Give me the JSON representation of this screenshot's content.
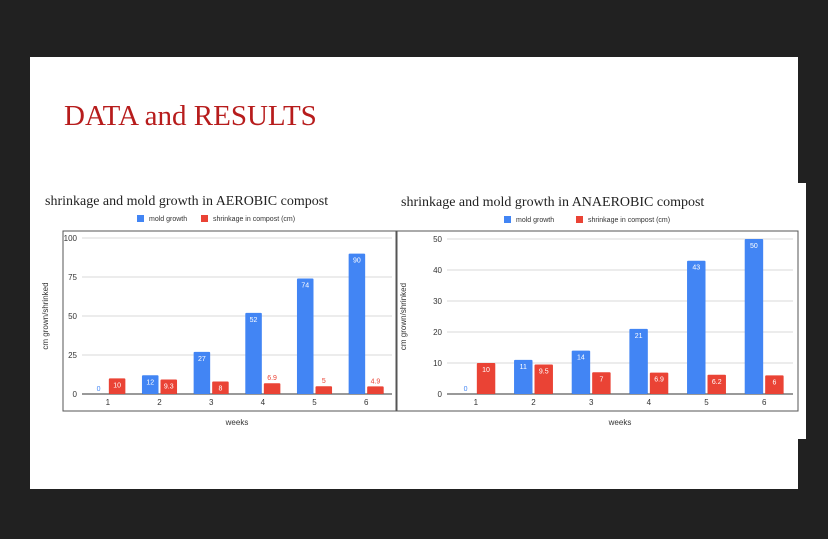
{
  "slide": {
    "title": "DATA and RESULTS",
    "colors": {
      "title": "#b71c1c",
      "mold": "#4285f4",
      "shrink": "#ea4335"
    }
  },
  "chart_data": [
    {
      "type": "bar",
      "title": "shrinkage and mold growth in AEROBIC compost",
      "xlabel": "weeks",
      "ylabel": "cm grown/shrinked",
      "categories": [
        "1",
        "2",
        "3",
        "4",
        "5",
        "6"
      ],
      "ylim": [
        0,
        100
      ],
      "yticks": [
        "0",
        "25",
        "50",
        "75",
        "100"
      ],
      "legend_position": "top",
      "series": [
        {
          "name": "mold growth",
          "values": [
            0,
            12,
            27,
            52,
            74,
            90
          ],
          "labels": [
            "0",
            "12",
            "27",
            "52",
            "74",
            "90"
          ]
        },
        {
          "name": "shrinkage in compost (cm)",
          "values": [
            10,
            9.3,
            8,
            6.9,
            5,
            4.9
          ],
          "labels": [
            "10",
            "9.3",
            "8",
            "6.9",
            "5",
            "4.9"
          ]
        }
      ]
    },
    {
      "type": "bar",
      "title": "shrinkage and mold growth in ANAEROBIC compost",
      "xlabel": "weeks",
      "ylabel": "cm grown/shrinked",
      "categories": [
        "1",
        "2",
        "3",
        "4",
        "5",
        "6"
      ],
      "ylim": [
        0,
        50
      ],
      "yticks": [
        "0",
        "10",
        "20",
        "30",
        "40",
        "50"
      ],
      "legend_position": "top",
      "series": [
        {
          "name": "mold growth",
          "values": [
            0,
            11,
            14,
            21,
            43,
            50
          ],
          "labels": [
            "0",
            "11",
            "14",
            "21",
            "43",
            "50"
          ]
        },
        {
          "name": "shrinkage in compost (cm)",
          "values": [
            10,
            9.5,
            7,
            6.9,
            6.2,
            6
          ],
          "labels": [
            "10",
            "9.5",
            "7",
            "6.9",
            "6.2",
            "6"
          ]
        }
      ]
    }
  ]
}
